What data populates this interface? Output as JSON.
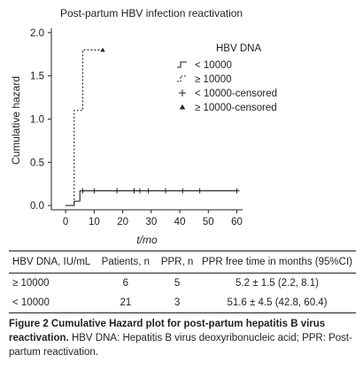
{
  "chart_data": {
    "type": "line",
    "step": true,
    "title": "Post-partum HBV infection reactivation",
    "xlabel": "t/mo",
    "ylabel": "Cumulative hazard",
    "xlim": [
      -5,
      62
    ],
    "ylim": [
      -0.05,
      2.05
    ],
    "xticks": [
      0,
      10,
      20,
      30,
      40,
      50,
      60
    ],
    "yticks": [
      0.0,
      0.5,
      1.0,
      1.5,
      2.0
    ],
    "ytick_labels": [
      "0.0",
      "0.5",
      "1.0",
      "1.5",
      "2.0"
    ],
    "grid": false,
    "legend_title": "HBV DNA",
    "legend_position": "top-right",
    "series": [
      {
        "name": "< 10000",
        "line_style": "solid",
        "steps": [
          [
            0,
            0
          ],
          [
            3,
            0.05
          ],
          [
            5,
            0.17
          ],
          [
            60,
            0.17
          ]
        ],
        "censored": [
          6,
          10,
          18,
          24,
          26,
          29,
          35,
          41,
          47,
          60
        ],
        "censor_marker": "plus"
      },
      {
        "name": "≥ 10000",
        "line_style": "dotted",
        "steps": [
          [
            0,
            0
          ],
          [
            3,
            1.1
          ],
          [
            6,
            1.8
          ],
          [
            13,
            1.8
          ]
        ],
        "censored": [
          13
        ],
        "censor_marker": "triangle"
      }
    ],
    "legend_entries": [
      {
        "label": "< 10000",
        "symbol": "solid-step"
      },
      {
        "label": "≥ 10000",
        "symbol": "dotted-step"
      },
      {
        "label": "< 10000-censored",
        "symbol": "plus"
      },
      {
        "label": "≥ 10000-censored",
        "symbol": "triangle"
      }
    ]
  },
  "table": {
    "headers": [
      "HBV DNA, IU/mL",
      "Patients, n",
      "PPR, n",
      "PPR free time in months (95%CI)"
    ],
    "rows": [
      [
        "≥ 10000",
        "6",
        "5",
        "5.2 ± 1.5 (2.2, 8.1)"
      ],
      [
        "< 10000",
        "21",
        "3",
        "51.6 ± 4.5 (42.8, 60.4)"
      ]
    ]
  },
  "caption": {
    "title": "Figure 2  Cumulative Hazard plot for post-partum hepatitis B virus reactivation.",
    "text": " HBV DNA: Hepatitis B virus deoxyribonucleic acid; PPR: Post-partum reactivation."
  }
}
